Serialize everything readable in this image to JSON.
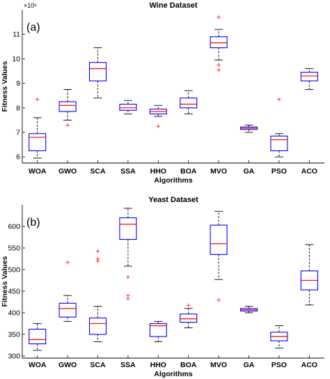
{
  "colors": {
    "box": "#0000ff",
    "median": "#ff0000",
    "outlier": "#ff0000",
    "axis": "#000000"
  },
  "chart_data": [
    {
      "type": "box",
      "panel_tag": "(a)",
      "title": "Wine Dataset",
      "xlabel": "Algorithms",
      "ylabel": "Fitness Values",
      "y_exponent_label": "×10⁶",
      "ylim": [
        5.75,
        12
      ],
      "yticks": [
        6,
        7,
        8,
        9,
        10,
        11
      ],
      "categories": [
        "WOA",
        "GWO",
        "SCA",
        "SSA",
        "HHO",
        "BOA",
        "MVO",
        "GA",
        "PSO",
        "ACO"
      ],
      "boxes": [
        {
          "min": 5.95,
          "q1": 6.25,
          "median": 6.8,
          "q3": 6.95,
          "max": 7.6,
          "outliers": [
            8.35
          ]
        },
        {
          "min": 7.5,
          "q1": 7.85,
          "median": 8.1,
          "q3": 8.25,
          "max": 8.75,
          "outliers": [
            7.3
          ]
        },
        {
          "min": 8.4,
          "q1": 9.1,
          "median": 9.6,
          "q3": 9.85,
          "max": 10.45,
          "outliers": []
        },
        {
          "min": 7.75,
          "q1": 7.9,
          "median": 8.0,
          "q3": 8.15,
          "max": 8.3,
          "outliers": []
        },
        {
          "min": 7.65,
          "q1": 7.75,
          "median": 7.85,
          "q3": 7.95,
          "max": 8.1,
          "outliers": [
            7.25
          ]
        },
        {
          "min": 7.75,
          "q1": 8.0,
          "median": 8.15,
          "q3": 8.4,
          "max": 8.7,
          "outliers": []
        },
        {
          "min": 9.95,
          "q1": 10.45,
          "median": 10.65,
          "q3": 10.9,
          "max": 11.2,
          "outliers": [
            11.7,
            9.55,
            9.75
          ]
        },
        {
          "min": 7.0,
          "q1": 7.12,
          "median": 7.17,
          "q3": 7.22,
          "max": 7.3,
          "outliers": []
        },
        {
          "min": 6.0,
          "q1": 6.25,
          "median": 6.7,
          "q3": 6.85,
          "max": 6.95,
          "outliers": [
            8.35
          ]
        },
        {
          "min": 8.75,
          "q1": 9.1,
          "median": 9.3,
          "q3": 9.45,
          "max": 9.6,
          "outliers": []
        }
      ]
    },
    {
      "type": "box",
      "panel_tag": "(b)",
      "title": "Yeast Dataset",
      "xlabel": "Algorithms",
      "ylabel": "Fitness Values",
      "ylim": [
        295,
        650
      ],
      "yticks": [
        300,
        350,
        400,
        450,
        500,
        550,
        600
      ],
      "categories": [
        "WOA",
        "GWO",
        "SCA",
        "SSA",
        "HHO",
        "BOA",
        "MVO",
        "GA",
        "PSO",
        "ACO"
      ],
      "boxes": [
        {
          "min": 313,
          "q1": 328,
          "median": 338,
          "q3": 362,
          "max": 375,
          "outliers": []
        },
        {
          "min": 380,
          "q1": 390,
          "median": 410,
          "q3": 422,
          "max": 440,
          "outliers": [
            517
          ]
        },
        {
          "min": 333,
          "q1": 350,
          "median": 375,
          "q3": 388,
          "max": 415,
          "outliers": [
            520,
            525,
            543
          ]
        },
        {
          "min": 508,
          "q1": 570,
          "median": 605,
          "q3": 620,
          "max": 642,
          "outliers": [
            483,
            433,
            440
          ]
        },
        {
          "min": 333,
          "q1": 345,
          "median": 370,
          "q3": 375,
          "max": 380,
          "outliers": []
        },
        {
          "min": 365,
          "q1": 378,
          "median": 386,
          "q3": 397,
          "max": 410,
          "outliers": [
            418
          ]
        },
        {
          "min": 477,
          "q1": 535,
          "median": 560,
          "q3": 603,
          "max": 635,
          "outliers": [
            430
          ]
        },
        {
          "min": 400,
          "q1": 404,
          "median": 407,
          "q3": 410,
          "max": 415,
          "outliers": []
        },
        {
          "min": 318,
          "q1": 335,
          "median": 345,
          "q3": 355,
          "max": 370,
          "outliers": []
        },
        {
          "min": 418,
          "q1": 453,
          "median": 475,
          "q3": 497,
          "max": 558,
          "outliers": []
        }
      ]
    }
  ]
}
